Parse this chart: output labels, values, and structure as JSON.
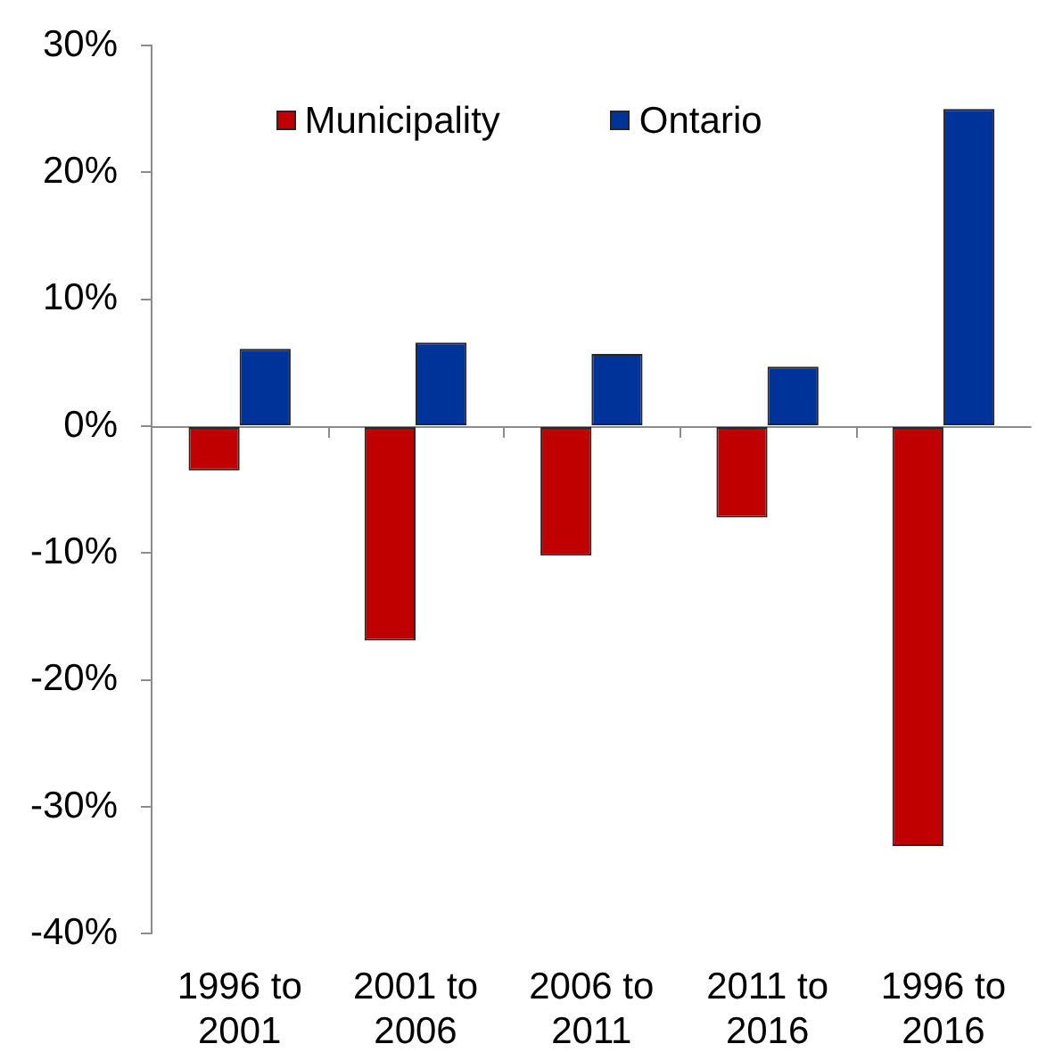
{
  "chart_data": {
    "type": "bar",
    "categories": [
      "1996 to 2001",
      "2001 to 2006",
      "2006 to 2011",
      "2011 to 2016",
      "1996 to 2016"
    ],
    "series": [
      {
        "name": "Municipality",
        "color": "#c00000",
        "values": [
          -3.5,
          -16.9,
          -10.2,
          -7.2,
          -33.1
        ]
      },
      {
        "name": "Ontario",
        "color": "#003399",
        "values": [
          6.1,
          6.6,
          5.7,
          4.7,
          25.0
        ]
      }
    ],
    "ylim": [
      -40,
      30
    ],
    "yticks": [
      {
        "value": -40,
        "label": "-40%"
      },
      {
        "value": -30,
        "label": "-30%"
      },
      {
        "value": -20,
        "label": "-20%"
      },
      {
        "value": -10,
        "label": "-10%"
      },
      {
        "value": 0,
        "label": "0%"
      },
      {
        "value": 10,
        "label": "10%"
      },
      {
        "value": 20,
        "label": "20%"
      },
      {
        "value": 30,
        "label": "30%"
      }
    ],
    "legend": "top"
  }
}
